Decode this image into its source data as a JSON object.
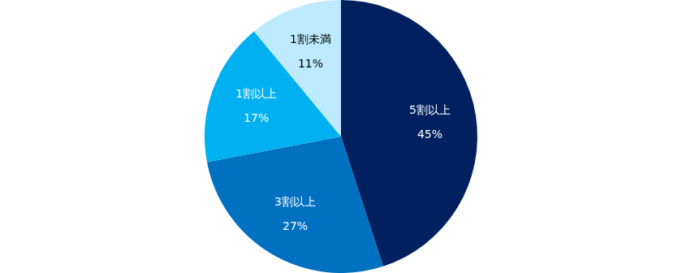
{
  "chart_data": {
    "type": "pie",
    "categories": [
      "5割以上",
      "3割以上",
      "1割以上",
      "1割未満"
    ],
    "values": [
      45,
      27,
      17,
      11
    ],
    "value_labels": [
      "45%",
      "27%",
      "17%",
      "11%"
    ],
    "colors": [
      "#002060",
      "#0070c0",
      "#00b0f0",
      "#bdeafc"
    ],
    "data_labels": true
  }
}
